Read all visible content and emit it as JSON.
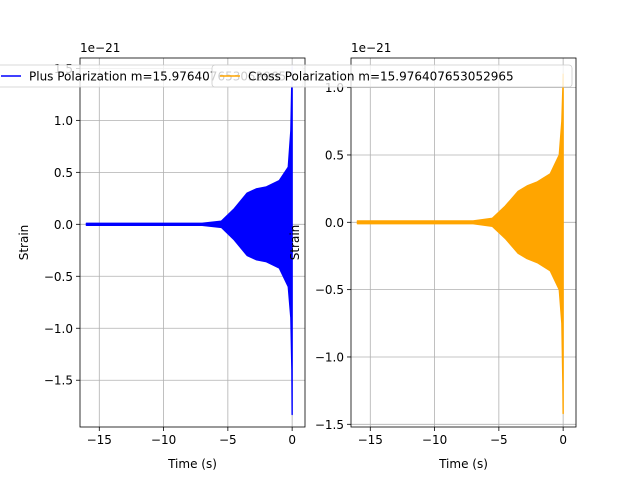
{
  "chart_data": [
    {
      "type": "line",
      "xlabel": "Time (s)",
      "ylabel": "Strain",
      "offset_text": "1e−21",
      "xlim": [
        -16.5,
        1.0
      ],
      "ylim": [
        -1.95,
        1.6
      ],
      "x_ticks": [
        -15,
        -10,
        -5,
        0
      ],
      "x_tick_labels": [
        "−15",
        "−10",
        "−5",
        "0"
      ],
      "y_ticks": [
        -1.5,
        -1.0,
        -0.5,
        0.0,
        0.5,
        1.0,
        1.5
      ],
      "y_tick_labels": [
        "−1.5",
        "−1.0",
        "−0.5",
        "0.0",
        "0.5",
        "1.0",
        "1.5"
      ],
      "grid": true,
      "legend_position": "upper-center",
      "series": [
        {
          "name": "Plus Polarization m=15.976407653052965",
          "color": "#0000ff",
          "envelope": [
            {
              "t": -16.0,
              "upper": 0.01,
              "lower": -0.01
            },
            {
              "t": -7.0,
              "upper": 0.01,
              "lower": -0.01
            },
            {
              "t": -5.5,
              "upper": 0.03,
              "lower": -0.03
            },
            {
              "t": -4.5,
              "upper": 0.15,
              "lower": -0.15
            },
            {
              "t": -3.5,
              "upper": 0.3,
              "lower": -0.3
            },
            {
              "t": -2.8,
              "upper": 0.34,
              "lower": -0.34
            },
            {
              "t": -2.0,
              "upper": 0.36,
              "lower": -0.36
            },
            {
              "t": -1.0,
              "upper": 0.42,
              "lower": -0.42
            },
            {
              "t": -0.3,
              "upper": 0.55,
              "lower": -0.6
            },
            {
              "t": -0.1,
              "upper": 0.9,
              "lower": -0.9
            },
            {
              "t": -0.02,
              "upper": 1.4,
              "lower": -1.4
            },
            {
              "t": 0.0,
              "upper": 1.52,
              "lower": -1.83
            }
          ]
        }
      ]
    },
    {
      "type": "line",
      "xlabel": "Time (s)",
      "ylabel": "Strain",
      "offset_text": "1e−21",
      "xlim": [
        -16.5,
        1.0
      ],
      "ylim": [
        -1.52,
        1.22
      ],
      "x_ticks": [
        -15,
        -10,
        -5,
        0
      ],
      "x_tick_labels": [
        "−15",
        "−10",
        "−5",
        "0"
      ],
      "y_ticks": [
        -1.5,
        -1.0,
        -0.5,
        0.0,
        0.5,
        1.0
      ],
      "y_tick_labels": [
        "−1.5",
        "−1.0",
        "−0.5",
        "0.0",
        "0.5",
        "1.0"
      ],
      "grid": true,
      "legend_position": "upper-center",
      "series": [
        {
          "name": "Cross Polarization m=15.976407653052965",
          "color": "#ffa500",
          "envelope": [
            {
              "t": -16.0,
              "upper": 0.01,
              "lower": -0.01
            },
            {
              "t": -7.0,
              "upper": 0.01,
              "lower": -0.01
            },
            {
              "t": -5.5,
              "upper": 0.03,
              "lower": -0.03
            },
            {
              "t": -4.5,
              "upper": 0.12,
              "lower": -0.12
            },
            {
              "t": -3.5,
              "upper": 0.23,
              "lower": -0.23
            },
            {
              "t": -2.8,
              "upper": 0.27,
              "lower": -0.27
            },
            {
              "t": -2.0,
              "upper": 0.3,
              "lower": -0.3
            },
            {
              "t": -1.0,
              "upper": 0.36,
              "lower": -0.36
            },
            {
              "t": -0.3,
              "upper": 0.5,
              "lower": -0.5
            },
            {
              "t": -0.1,
              "upper": 0.75,
              "lower": -0.75
            },
            {
              "t": -0.02,
              "upper": 1.0,
              "lower": -1.2
            },
            {
              "t": 0.0,
              "upper": 1.1,
              "lower": -1.42
            }
          ]
        }
      ]
    }
  ]
}
